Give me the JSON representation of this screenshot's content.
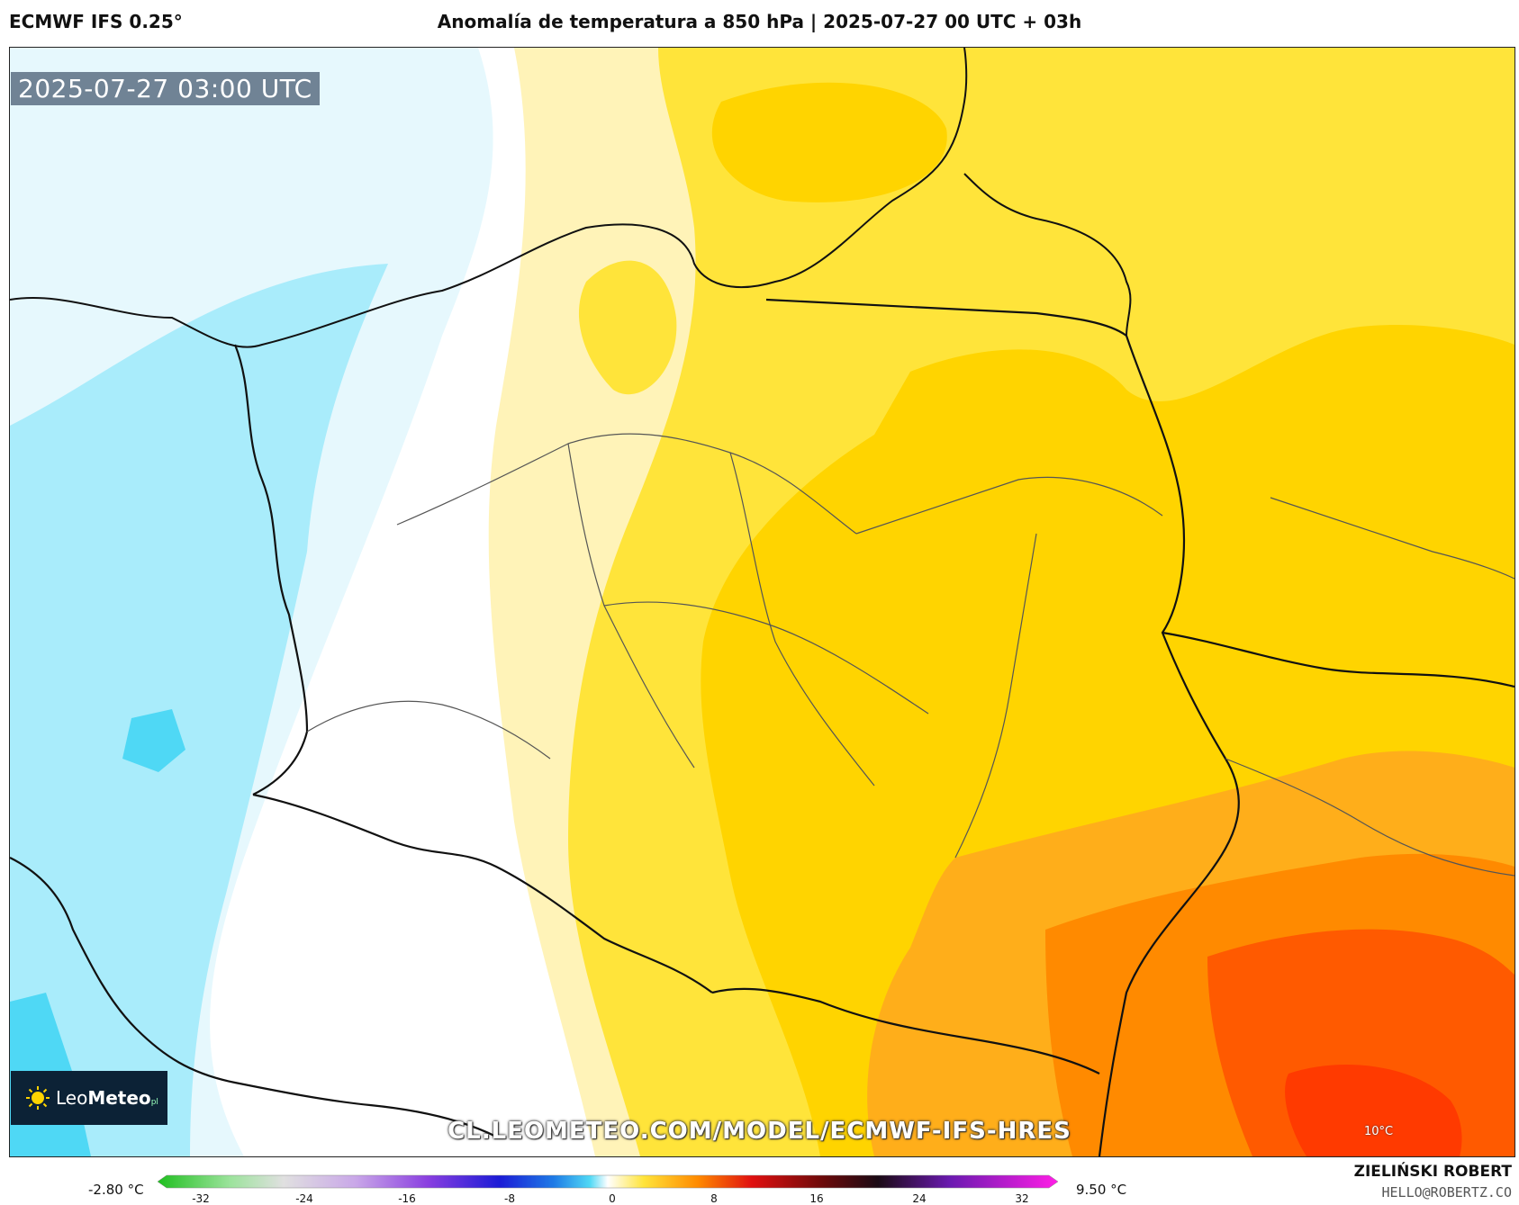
{
  "header": {
    "model": "ECMWF IFS 0.25°",
    "title": "Anomalía de temperatura a 850 hPa | 2025-07-27 00 UTC + 03h"
  },
  "map": {
    "valid_time": "2025-07-27 03:00 UTC",
    "url": "CL.LEOMETEO.COM/MODEL/ECMWF-IFS-HRES",
    "corner_label": "10°C",
    "logo": {
      "brand_light": "Leo",
      "brand_bold": "Meteo",
      "suffix": "pl"
    },
    "colors": {
      "cold_deep": "#4fd8f5",
      "cold": "#a9ecfb",
      "cool": "#e6f8fd",
      "neutral": "#ffffff",
      "warm_light": "#fff3b8",
      "warm": "#ffe43a",
      "warmer": "#ffd400",
      "hot": "#ffae1a",
      "hotter": "#ff8a00",
      "hottest": "#ff5a00",
      "extreme": "#ff3a00"
    }
  },
  "colorbar": {
    "min_label": "-2.80 °C",
    "max_label": "9.50 °C",
    "ticks": [
      "-32",
      "-24",
      "-16",
      "-8",
      "0",
      "8",
      "16",
      "24",
      "32"
    ]
  },
  "credit": {
    "name": "ZIELIŃSKI ROBERT",
    "email": "HELLO@ROBERTZ.CO"
  }
}
